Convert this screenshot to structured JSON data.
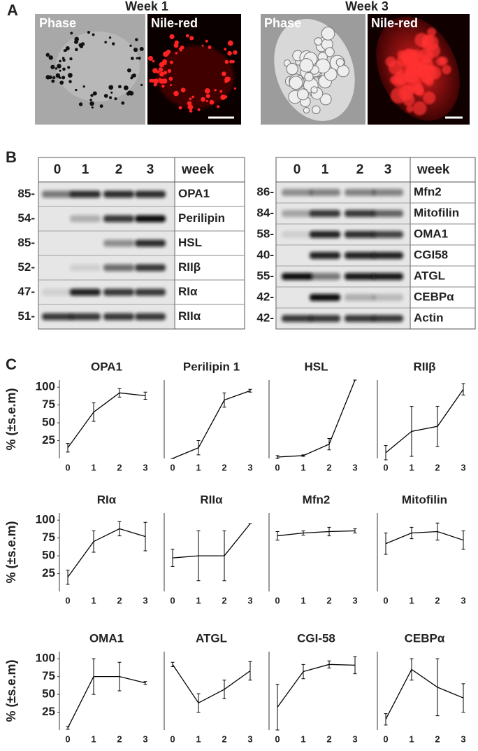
{
  "panel_labels": [
    "A",
    "B",
    "C"
  ],
  "microscopy": [
    {
      "title": "Week 1",
      "labels": [
        "Phase",
        "Nile-red"
      ]
    },
    {
      "title": "Week 3",
      "labels": [
        "Phase",
        "Nile-red"
      ]
    }
  ],
  "blots": [
    {
      "lanes": [
        "0",
        "1",
        "2",
        "3"
      ],
      "lane_unit": "week",
      "rows": [
        {
          "mw": "85-",
          "protein": "OPA1"
        },
        {
          "mw": "54-",
          "protein": "Perilipin"
        },
        {
          "mw": "85-",
          "protein": "HSL"
        },
        {
          "mw": "52-",
          "protein": "RIIβ"
        },
        {
          "mw": "47-",
          "protein": "RIα"
        },
        {
          "mw": "51-",
          "protein": "RIIα"
        }
      ]
    },
    {
      "lanes": [
        "0",
        "1",
        "2",
        "3"
      ],
      "lane_unit": "week",
      "rows": [
        {
          "mw": "86-",
          "protein": "Mfn2"
        },
        {
          "mw": "84-",
          "protein": "Mitofilin"
        },
        {
          "mw": "58-",
          "protein": "OMA1"
        },
        {
          "mw": "40-",
          "protein": "CGI58"
        },
        {
          "mw": "55-",
          "protein": "ATGL"
        },
        {
          "mw": "42-",
          "protein": "CEBPα"
        },
        {
          "mw": "42-",
          "protein": "Actin"
        }
      ]
    }
  ],
  "chart_data": [
    {
      "type": "line",
      "title": "OPA1",
      "y_label": "% (±s.e.m)",
      "categories": [
        "0",
        "1",
        "2",
        "3"
      ],
      "values": [
        15,
        65,
        92,
        88
      ],
      "errors": [
        6,
        13,
        6,
        5
      ],
      "ylim": [
        0,
        110
      ],
      "yticks": [
        25,
        50,
        75,
        100
      ],
      "color": "#000000"
    },
    {
      "type": "line",
      "title": "Perilipin 1",
      "categories": [
        "0",
        "1",
        "2",
        "3"
      ],
      "values": [
        0,
        15,
        82,
        95
      ],
      "errors": [
        0,
        10,
        10,
        2
      ],
      "ylim": [
        0,
        110
      ],
      "color": "#000000"
    },
    {
      "type": "line",
      "title": "HSL",
      "categories": [
        "0",
        "1",
        "2",
        "3"
      ],
      "values": [
        2,
        4,
        20,
        110
      ],
      "errors": [
        2,
        1,
        8,
        0
      ],
      "ylim": [
        0,
        110
      ],
      "color": "#000000"
    },
    {
      "type": "line",
      "title": "RIIβ",
      "categories": [
        "0",
        "1",
        "2",
        "3"
      ],
      "values": [
        8,
        38,
        45,
        97
      ],
      "errors": [
        10,
        35,
        28,
        8
      ],
      "ylim": [
        0,
        110
      ],
      "color": "#000000"
    },
    {
      "type": "line",
      "title": "RIα",
      "y_label": "% (±s.e.m)",
      "categories": [
        "0",
        "1",
        "2",
        "3"
      ],
      "values": [
        20,
        70,
        88,
        77
      ],
      "errors": [
        10,
        15,
        10,
        20
      ],
      "ylim": [
        0,
        110
      ],
      "yticks": [
        25,
        50,
        75,
        100
      ],
      "color": "#000000"
    },
    {
      "type": "line",
      "title": "RIIα",
      "categories": [
        "0",
        "1",
        "2",
        "3"
      ],
      "values": [
        47,
        50,
        50,
        95
      ],
      "errors": [
        12,
        35,
        35,
        0
      ],
      "ylim": [
        0,
        110
      ],
      "color": "#000000"
    },
    {
      "type": "line",
      "title": "Mfn2",
      "categories": [
        "0",
        "1",
        "2",
        "3"
      ],
      "values": [
        78,
        82,
        84,
        85
      ],
      "errors": [
        6,
        3,
        6,
        3
      ],
      "ylim": [
        0,
        110
      ],
      "color": "#000000"
    },
    {
      "type": "line",
      "title": "Mitofilin",
      "categories": [
        "0",
        "1",
        "2",
        "3"
      ],
      "values": [
        67,
        82,
        84,
        72
      ],
      "errors": [
        15,
        8,
        12,
        13
      ],
      "ylim": [
        0,
        110
      ],
      "color": "#000000"
    },
    {
      "type": "line",
      "title": "OMA1",
      "y_label": "% (±s.e.m)",
      "categories": [
        "0",
        "1",
        "2",
        "3"
      ],
      "values": [
        3,
        75,
        75,
        66
      ],
      "errors": [
        2,
        25,
        20,
        2
      ],
      "ylim": [
        0,
        110
      ],
      "yticks": [
        25,
        50,
        75,
        100
      ],
      "color": "#000000"
    },
    {
      "type": "line",
      "title": "ATGL",
      "categories": [
        "0",
        "1",
        "2",
        "3"
      ],
      "values": [
        92,
        38,
        57,
        83
      ],
      "errors": [
        3,
        13,
        13,
        13
      ],
      "ylim": [
        0,
        110
      ],
      "color": "#000000"
    },
    {
      "type": "line",
      "title": "CGI-58",
      "categories": [
        "0",
        "1",
        "2",
        "3"
      ],
      "values": [
        32,
        82,
        92,
        91
      ],
      "errors": [
        32,
        10,
        5,
        12
      ],
      "ylim": [
        0,
        110
      ],
      "color": "#000000"
    },
    {
      "type": "line",
      "title": "CEBPα",
      "categories": [
        "0",
        "1",
        "2",
        "3"
      ],
      "values": [
        15,
        85,
        60,
        45
      ],
      "errors": [
        8,
        15,
        40,
        20
      ],
      "ylim": [
        0,
        110
      ],
      "color": "#000000"
    }
  ]
}
